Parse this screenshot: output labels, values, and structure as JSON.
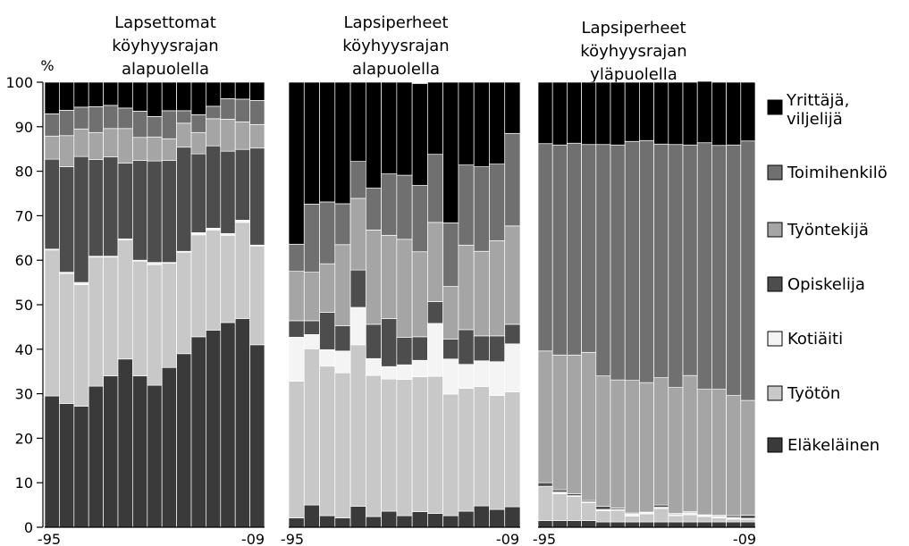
{
  "chart_data": {
    "type": "bar",
    "stacked": true,
    "normalized_percent": true,
    "y_unit_label": "%",
    "ylim": [
      0,
      100
    ],
    "y_ticks": [
      0,
      10,
      20,
      30,
      40,
      50,
      60,
      70,
      80,
      90,
      100
    ],
    "x_tick_labels": [
      "-95",
      "-09"
    ],
    "categories": [
      "1995",
      "1996",
      "1997",
      "1998",
      "1999",
      "2000",
      "2001",
      "2002",
      "2003",
      "2004",
      "2005",
      "2006",
      "2007",
      "2008",
      "2009"
    ],
    "legend": [
      {
        "key": "yrittaja",
        "label": "Yrittäjä, viljelijä",
        "color": "#000000"
      },
      {
        "key": "toimihenkilo",
        "label": "Toimihenkilö",
        "color": "#707070"
      },
      {
        "key": "tyontekija",
        "label": "Työntekijä",
        "color": "#a5a5a5"
      },
      {
        "key": "opiskelija",
        "label": "Opiskelija",
        "color": "#4d4d4d"
      },
      {
        "key": "kotiaiti",
        "label": "Kotiäiti",
        "color": "#f4f4f4"
      },
      {
        "key": "tyoton",
        "label": "Työtön",
        "color": "#c8c8c8"
      },
      {
        "key": "elakelainen",
        "label": "Eläkeläinen",
        "color": "#3a3a3a"
      }
    ],
    "panels": [
      {
        "title": "Lapsettomat köyhyysrajan alapuolella",
        "series": [
          {
            "key": "elakelainen",
            "values": [
              29.5,
              27.8,
              27.2,
              31.7,
              34.0,
              37.8,
              34.0,
              31.9,
              35.9,
              39.0,
              42.8,
              44.3,
              46.0,
              46.9,
              41.0
            ]
          },
          {
            "key": "tyoton",
            "values": [
              32.8,
              29.2,
              27.3,
              29.0,
              26.7,
              26.8,
              25.8,
              27.1,
              23.4,
              22.8,
              22.9,
              22.5,
              19.6,
              21.6,
              22.2
            ]
          },
          {
            "key": "kotiaiti",
            "values": [
              0.2,
              0.3,
              0.5,
              0.2,
              0.2,
              0.2,
              0.2,
              0.5,
              0.2,
              0.2,
              0.5,
              0.4,
              0.4,
              0.5,
              0.2
            ]
          },
          {
            "key": "opiskelija",
            "values": [
              20.2,
              23.7,
              28.3,
              21.7,
              22.3,
              17.0,
              22.4,
              22.8,
              22.9,
              23.4,
              17.7,
              18.5,
              18.5,
              15.9,
              21.8
            ]
          },
          {
            "key": "tyontekija",
            "values": [
              5.2,
              7.0,
              6.2,
              6.1,
              6.4,
              7.8,
              5.2,
              5.4,
              4.9,
              5.4,
              4.8,
              6.1,
              7.2,
              6.2,
              5.3
            ]
          },
          {
            "key": "toimihenkilo",
            "values": [
              5.0,
              5.7,
              4.9,
              5.8,
              5.2,
              4.6,
              5.9,
              4.6,
              6.3,
              2.8,
              4.0,
              2.8,
              4.6,
              5.1,
              5.4
            ]
          },
          {
            "key": "yrittaja",
            "values": [
              7.1,
              6.3,
              5.6,
              5.5,
              5.2,
              5.8,
              6.5,
              7.7,
              6.4,
              6.4,
              7.3,
              5.4,
              3.7,
              3.8,
              4.1
            ]
          }
        ]
      },
      {
        "title": "Lapsiperheet köyhyysrajan alapuolella",
        "series": [
          {
            "key": "elakelainen",
            "values": [
              2.1,
              5.0,
              2.6,
              2.1,
              4.7,
              2.4,
              3.6,
              2.6,
              3.5,
              3.1,
              2.6,
              3.6,
              4.8,
              4.0,
              4.6
            ]
          },
          {
            "key": "tyoton",
            "values": [
              30.7,
              35.1,
              33.6,
              32.6,
              36.3,
              31.7,
              29.7,
              30.6,
              30.3,
              30.8,
              27.3,
              27.6,
              26.8,
              25.6,
              25.8
            ]
          },
          {
            "key": "kotiaiti",
            "values": [
              9.9,
              3.2,
              3.7,
              4.9,
              8.4,
              3.8,
              2.8,
              3.3,
              3.7,
              11.9,
              7.9,
              5.4,
              5.8,
              7.6,
              10.8
            ]
          },
          {
            "key": "opiskelija",
            "values": [
              3.7,
              3.1,
              8.4,
              5.7,
              8.4,
              7.7,
              10.8,
              6.2,
              5.3,
              4.9,
              4.5,
              7.8,
              5.6,
              5.8,
              4.4
            ]
          },
          {
            "key": "tyontekija",
            "values": [
              11.1,
              10.9,
              10.9,
              18.2,
              16.1,
              21.2,
              18.7,
              22.0,
              19.1,
              17.8,
              11.8,
              19.0,
              19.0,
              21.4,
              22.1
            ]
          },
          {
            "key": "toimihenkilo",
            "values": [
              6.1,
              15.3,
              13.9,
              9.2,
              8.3,
              9.4,
              13.8,
              14.4,
              14.9,
              15.3,
              14.3,
              18.0,
              19.0,
              17.2,
              20.8
            ]
          },
          {
            "key": "yrittaja",
            "values": [
              36.4,
              27.4,
              26.9,
              27.3,
              17.8,
              23.8,
              20.6,
              20.9,
              22.9,
              16.2,
              31.6,
              18.6,
              19.0,
              18.4,
              11.5
            ]
          }
        ]
      },
      {
        "title": "Lapsiperheet köyhyysrajan yläpuolella",
        "series": [
          {
            "key": "elakelainen",
            "values": [
              1.5,
              1.5,
              1.5,
              1.5,
              1.2,
              1.2,
              1.2,
              1.2,
              1.2,
              1.2,
              1.2,
              1.2,
              1.2,
              1.2,
              1.2
            ]
          },
          {
            "key": "tyoton",
            "values": [
              7.7,
              6.0,
              5.4,
              4.0,
              2.5,
              2.6,
              1.3,
              1.8,
              3.0,
              1.4,
              1.6,
              1.2,
              0.9,
              0.6,
              0.6
            ]
          },
          {
            "key": "kotiaiti",
            "values": [
              0.0,
              0.4,
              0.2,
              0.2,
              0.3,
              0.2,
              0.5,
              0.3,
              0.3,
              0.3,
              0.5,
              0.3,
              0.4,
              0.4,
              0.2
            ]
          },
          {
            "key": "opiskelija",
            "values": [
              0.8,
              0.5,
              0.4,
              0.3,
              0.7,
              0.3,
              0.2,
              0.1,
              0.5,
              0.2,
              0.2,
              0.1,
              0.2,
              0.4,
              0.7
            ]
          },
          {
            "key": "tyontekija",
            "values": [
              29.6,
              30.3,
              31.2,
              33.3,
              29.3,
              28.8,
              29.8,
              29.1,
              28.6,
              28.3,
              30.6,
              28.2,
              28.3,
              27.0,
              25.8
            ]
          },
          {
            "key": "toimihenkilo",
            "values": [
              46.6,
              47.2,
              47.6,
              46.7,
              52.0,
              52.8,
              53.7,
              54.4,
              52.5,
              54.6,
              51.8,
              55.4,
              54.8,
              56.3,
              58.3
            ]
          },
          {
            "key": "yrittaja",
            "values": [
              13.8,
              14.1,
              13.7,
              14.0,
              14.0,
              14.1,
              13.3,
              13.1,
              13.9,
              14.0,
              14.1,
              13.8,
              14.2,
              14.1,
              13.2
            ]
          }
        ]
      }
    ]
  }
}
